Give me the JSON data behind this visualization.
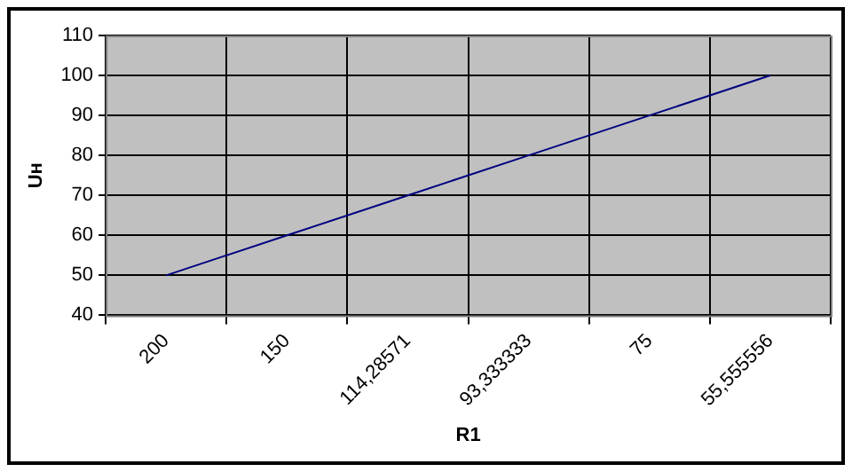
{
  "chart_data": {
    "type": "line",
    "xlabel": "R1",
    "ylabel": "Uн",
    "categories": [
      "200",
      "150",
      "114,28571",
      "93,333333",
      "75",
      "55,555556"
    ],
    "series": [
      {
        "color": "#000080",
        "values": [
          50,
          60,
          70,
          80,
          90,
          100
        ]
      }
    ],
    "ylim": [
      40,
      110
    ],
    "yticks": [
      40,
      50,
      60,
      70,
      80,
      90,
      100,
      110
    ],
    "grid": true,
    "legend": false,
    "marker": "none",
    "line_style": "solid"
  }
}
